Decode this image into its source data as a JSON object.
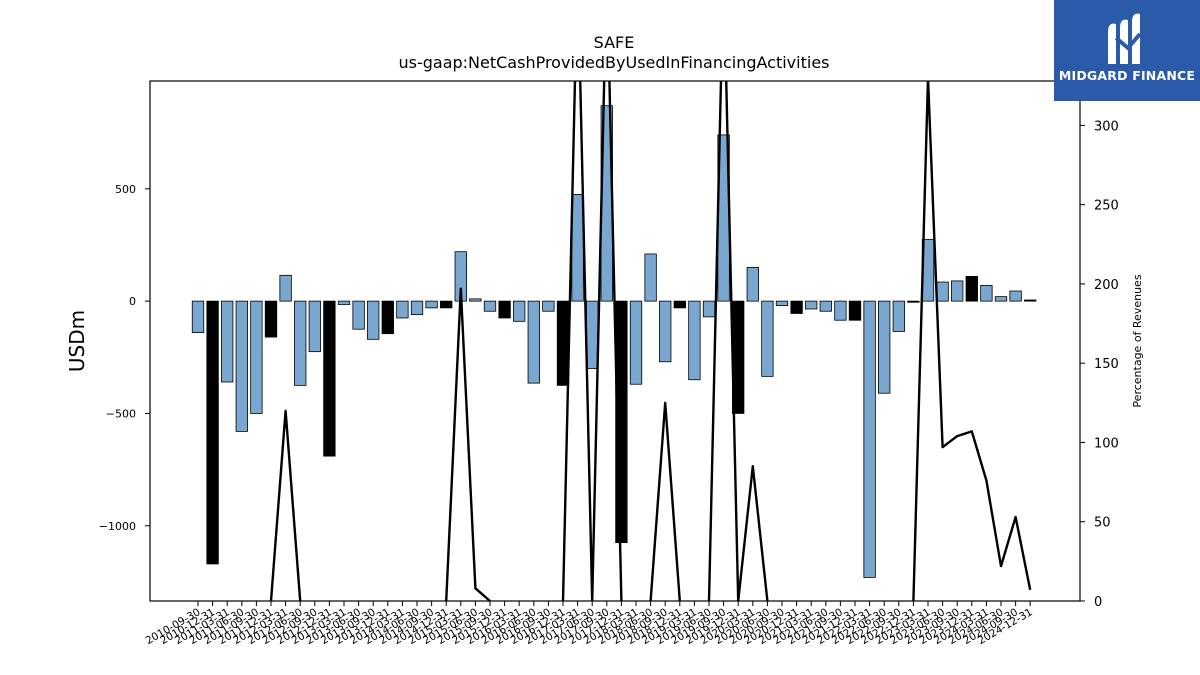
{
  "chart_data": {
    "type": "bar",
    "title": "SAFE",
    "subtitle": "us-gaap:NetCashProvidedByUsedInFinancingActivities",
    "ylabel": "USDm",
    "y2label": "Percentage of Revenues",
    "ylim": [
      -1335,
      980
    ],
    "y2lim": [
      0,
      328
    ],
    "yticks": [
      500,
      0,
      -500,
      -1000
    ],
    "ytick_labels": [
      "500",
      "0",
      "−500",
      "−1000"
    ],
    "y2ticks": [
      0,
      50,
      100,
      150,
      200,
      250,
      300
    ],
    "y2tick_labels": [
      "0",
      "50",
      "100",
      "150",
      "200",
      "250",
      "300"
    ],
    "bar_colors": {
      "light": "#7aa7cf",
      "dark": "#000000"
    },
    "categories": [
      "2010-09-30",
      "2010-12-31",
      "2011-03-31",
      "2011-06-30",
      "2011-09-30",
      "2011-12-31",
      "2012-03-31",
      "2012-06-30",
      "2012-09-30",
      "2012-12-31",
      "2013-03-31",
      "2013-06-30",
      "2013-09-30",
      "2013-12-31",
      "2014-03-31",
      "2014-06-30",
      "2014-09-30",
      "2014-12-31",
      "2015-03-31",
      "2015-06-30",
      "2015-09-30",
      "2015-12-31",
      "2016-03-31",
      "2016-06-30",
      "2016-09-30",
      "2016-12-31",
      "2017-03-31",
      "2017-06-30",
      "2017-09-30",
      "2017-12-31",
      "2018-03-31",
      "2018-06-30",
      "2018-09-30",
      "2018-12-31",
      "2019-03-31",
      "2019-06-30",
      "2019-09-30",
      "2019-12-31",
      "2020-03-31",
      "2020-06-30",
      "2020-09-30",
      "2020-12-31",
      "2021-03-31",
      "2021-06-30",
      "2021-09-30",
      "2021-12-31",
      "2022-03-31",
      "2022-06-30",
      "2022-09-30",
      "2022-12-31",
      "2023-03-31",
      "2023-06-30",
      "2023-09-30",
      "2023-12-31",
      "2024-03-31",
      "2024-06-30",
      "2024-09-30",
      "2024-12-31"
    ],
    "values": [
      -140,
      -1170,
      -360,
      -580,
      -500,
      -160,
      115,
      -375,
      -225,
      -690,
      -15,
      -125,
      -170,
      -145,
      -75,
      -60,
      -30,
      -30,
      220,
      10,
      -45,
      -75,
      -90,
      -365,
      -45,
      -375,
      475,
      -300,
      870,
      -1075,
      -370,
      210,
      -270,
      -30,
      -350,
      -70,
      740,
      -500,
      150,
      -335,
      -20,
      -55,
      -35,
      -45,
      -85,
      -85,
      -1230,
      -410,
      -135,
      -5,
      275,
      85,
      90,
      110,
      70,
      20,
      45,
      5
    ],
    "bar_tone": [
      "light",
      "dark",
      "light",
      "light",
      "light",
      "dark",
      "light",
      "light",
      "light",
      "dark",
      "light",
      "light",
      "light",
      "dark",
      "light",
      "light",
      "light",
      "dark",
      "light",
      "light",
      "light",
      "dark",
      "light",
      "light",
      "light",
      "dark",
      "light",
      "light",
      "light",
      "dark",
      "light",
      "light",
      "light",
      "dark",
      "light",
      "light",
      "light",
      "dark",
      "light",
      "light",
      "light",
      "dark",
      "light",
      "light",
      "light",
      "dark",
      "light",
      "light",
      "light",
      "dark",
      "light",
      "light",
      "light",
      "dark",
      "light",
      "light",
      "light",
      "dark"
    ],
    "line_series": {
      "axis": "right",
      "color": "#000000",
      "values": [
        null,
        null,
        null,
        null,
        null,
        0,
        120,
        0,
        null,
        null,
        null,
        null,
        null,
        null,
        null,
        null,
        null,
        0,
        197,
        8,
        0,
        null,
        null,
        null,
        null,
        0,
        400,
        0,
        400,
        0,
        null,
        0,
        125,
        0,
        null,
        0,
        400,
        0,
        85,
        0,
        null,
        null,
        null,
        null,
        null,
        null,
        null,
        null,
        null,
        0,
        330,
        97,
        104,
        107,
        76,
        22,
        53,
        7
      ]
    }
  },
  "logo": {
    "brand": "MIDGARD FINANCE"
  }
}
